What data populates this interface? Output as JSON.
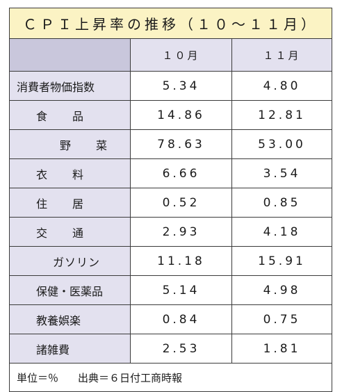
{
  "title": "ＣＰＩ上昇率の推移（１０～１１月）",
  "header": {
    "blank": "",
    "col1": "１０月",
    "col2": "１１月"
  },
  "rows": [
    {
      "label": "消費者物価指数",
      "oct": "5.34",
      "nov": "4.80"
    },
    {
      "label": "食　品",
      "oct": "14.86",
      "nov": "12.81"
    },
    {
      "label": "野　菜",
      "oct": "78.63",
      "nov": "53.00"
    },
    {
      "label": "衣　料",
      "oct": "6.66",
      "nov": "3.54"
    },
    {
      "label": "住　居",
      "oct": "0.52",
      "nov": "0.85"
    },
    {
      "label": "交　通",
      "oct": "2.93",
      "nov": "4.18"
    },
    {
      "label": "ガソリン",
      "oct": "11.18",
      "nov": "15.91"
    },
    {
      "label": "保健・医薬品",
      "oct": "5.14",
      "nov": "4.98"
    },
    {
      "label": "教養娯楽",
      "oct": "0.84",
      "nov": "0.75"
    },
    {
      "label": "諸雑費",
      "oct": "2.53",
      "nov": "1.81"
    }
  ],
  "footer": {
    "unit": "単位＝％",
    "source": "出典＝６日付工商時報"
  }
}
